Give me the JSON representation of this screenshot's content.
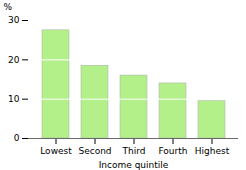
{
  "chart_data": {
    "type": "bar",
    "categories": [
      "Lowest",
      "Second",
      "Third",
      "Fourth",
      "Highest"
    ],
    "values": [
      27.5,
      18.5,
      16.0,
      14.0,
      9.5
    ],
    "color": "#b3f08a",
    "xlabel": "Income quintile",
    "ylabel": "%",
    "ylim": [
      0,
      30
    ],
    "yticks": [
      0,
      10,
      20,
      30
    ],
    "grid": true
  }
}
